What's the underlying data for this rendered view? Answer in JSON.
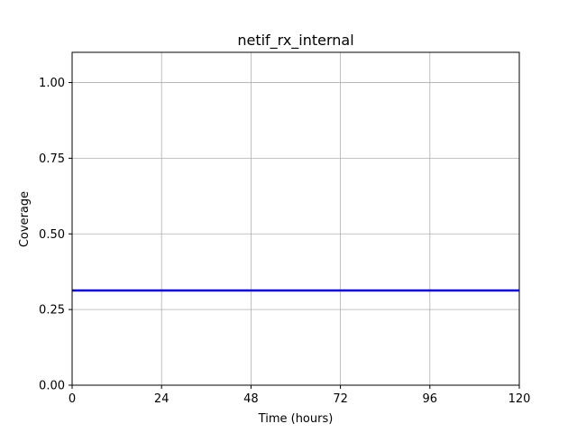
{
  "chart_data": {
    "type": "line",
    "title": "netif_rx_internal",
    "xlabel": "Time (hours)",
    "ylabel": "Coverage",
    "xlim": [
      0,
      120
    ],
    "ylim": [
      0,
      1.1
    ],
    "xticks": [
      0,
      24,
      48,
      72,
      96,
      120
    ],
    "yticks": [
      0.0,
      0.25,
      0.5,
      0.75,
      1.0
    ],
    "xtick_labels": [
      "0",
      "24",
      "48",
      "72",
      "96",
      "120"
    ],
    "ytick_labels": [
      "0.00",
      "0.25",
      "0.50",
      "0.75",
      "1.00"
    ],
    "grid": true,
    "series": [
      {
        "color": "#0000cc",
        "x": [
          0,
          120
        ],
        "y": [
          0.313,
          0.313
        ]
      }
    ]
  }
}
